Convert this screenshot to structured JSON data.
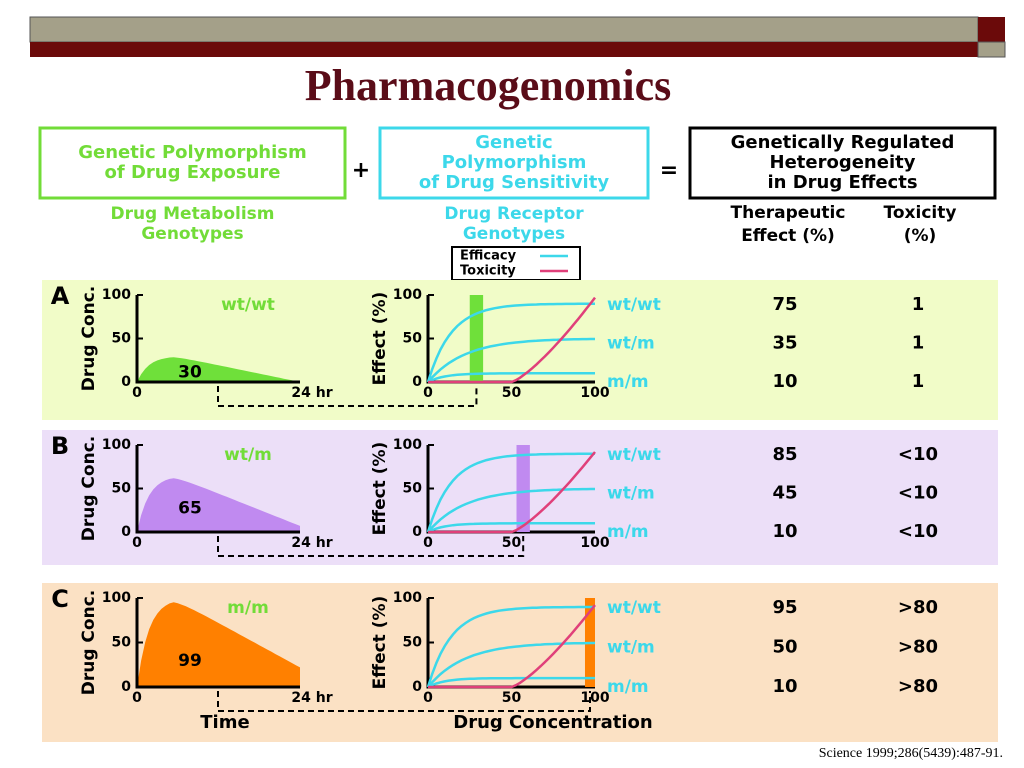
{
  "header": {
    "title": "Pharmacogenomics"
  },
  "equation": {
    "boxes": [
      {
        "lines": [
          "Genetic Polymorphism",
          "of Drug Exposure"
        ],
        "sublabel": [
          "Drug Metabolism",
          "Genotypes"
        ]
      },
      {
        "lines": [
          "Genetic",
          "Polymorphism",
          "of Drug Sensitivity"
        ],
        "sublabel": [
          "Drug Receptor",
          "Genotypes"
        ]
      },
      {
        "lines": [
          "Genetically Regulated",
          "Heterogeneity",
          "in Drug Effects"
        ]
      }
    ],
    "operators": [
      "+",
      "="
    ]
  },
  "result_columns": [
    [
      "Therapeutic",
      "Effect (%)"
    ],
    [
      "Toxicity",
      "(%)"
    ]
  ],
  "legend": [
    "Efficacy",
    "Toxicity"
  ],
  "axes": {
    "left_y": "Drug Conc.",
    "left_yticks": [
      "100",
      "50",
      "0"
    ],
    "left_xticks": [
      "0",
      "24 hr"
    ],
    "left_x": "Time",
    "right_y": "Effect (%)",
    "right_yticks": [
      "100",
      "50",
      "0"
    ],
    "right_xticks": [
      "0",
      "50",
      "100"
    ],
    "right_x": "Drug Concentration"
  },
  "panels": [
    {
      "letter": "A",
      "genotype": "wt/wt",
      "auc": "30",
      "rows": [
        {
          "genotype": "wt/wt",
          "effect": "75",
          "toxicity": "1"
        },
        {
          "genotype": "wt/m",
          "effect": "35",
          "toxicity": "1"
        },
        {
          "genotype": "m/m",
          "effect": "10",
          "toxicity": "1"
        }
      ]
    },
    {
      "letter": "B",
      "genotype": "wt/m",
      "auc": "65",
      "rows": [
        {
          "genotype": "wt/wt",
          "effect": "85",
          "toxicity": "<10"
        },
        {
          "genotype": "wt/m",
          "effect": "45",
          "toxicity": "<10"
        },
        {
          "genotype": "m/m",
          "effect": "10",
          "toxicity": "<10"
        }
      ]
    },
    {
      "letter": "C",
      "genotype": "m/m",
      "auc": "99",
      "rows": [
        {
          "genotype": "wt/wt",
          "effect": "95",
          "toxicity": ">80"
        },
        {
          "genotype": "wt/m",
          "effect": "50",
          "toxicity": ">80"
        },
        {
          "genotype": "m/m",
          "effect": "10",
          "toxicity": ">80"
        }
      ]
    }
  ],
  "citation": "Science 1999;286(5439):487-91."
}
